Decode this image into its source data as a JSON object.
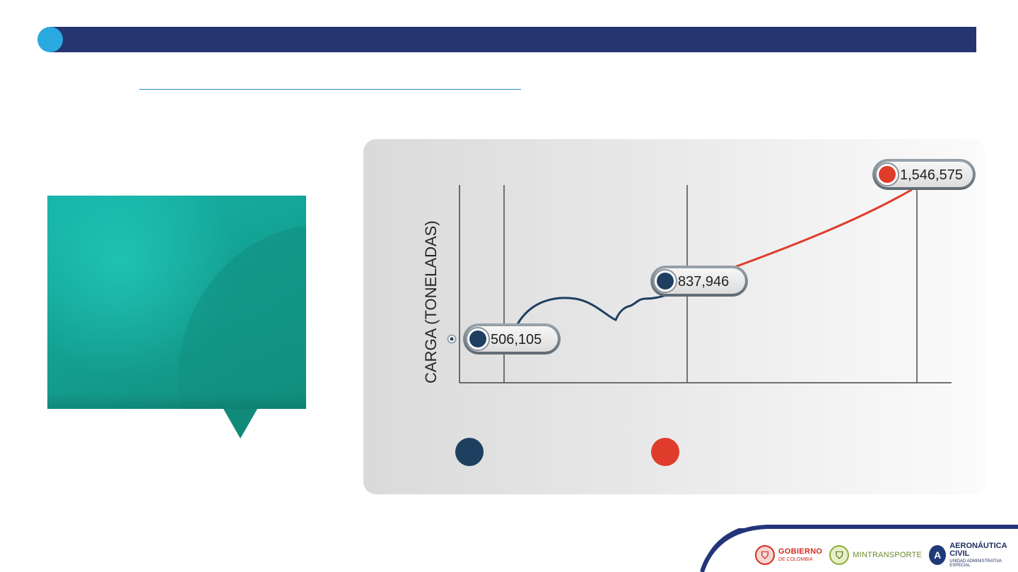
{
  "colors": {
    "header_bar": "#24356f",
    "header_dot": "#2aa8e0",
    "teal_panel": "#14a597",
    "series_dark": "#1e3f60",
    "series_red": "#e03c2c"
  },
  "chart_data": {
    "type": "line",
    "ylabel": "CARGA (TONELADAS)",
    "xlabel": "",
    "grid": "vertical",
    "series": [
      {
        "color": "#1e3f60",
        "points": [
          {
            "label": "506,105",
            "value": 506105
          },
          {
            "label": "837,946",
            "value": 837946
          }
        ]
      },
      {
        "color": "#e03c2c",
        "points": [
          {
            "label": "837,946",
            "value": 837946
          },
          {
            "label": "1,546,575",
            "value": 1546575
          }
        ]
      }
    ],
    "legend_swatches": [
      "#1e3f60",
      "#e03c2c"
    ]
  },
  "footer": {
    "logos": [
      {
        "icon": "colombia-shield-icon",
        "line1": "GOBIERNO",
        "line2": "DE COLOMBIA"
      },
      {
        "icon": "mintransporte-shield-icon",
        "line1": "MINTRANSPORTE"
      },
      {
        "icon": "aeronautica-a-icon",
        "mark": "A",
        "line1": "AERONÁUTICA CIVIL",
        "line2": "UNIDAD ADMINISTRATIVA ESPECIAL"
      }
    ]
  }
}
